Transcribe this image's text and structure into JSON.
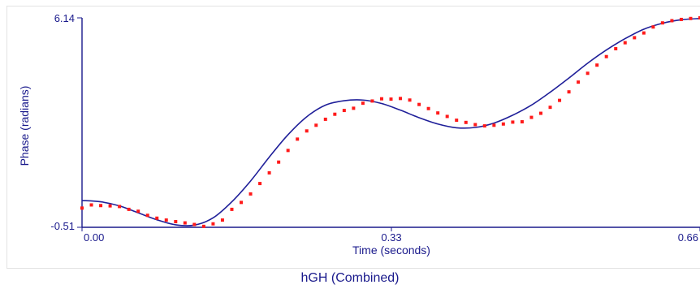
{
  "chart_data": {
    "type": "line",
    "title": "hGH (Combined)",
    "xlabel": "Time (seconds)",
    "ylabel": "Phase (radians)",
    "xlim": [
      0.0,
      0.66
    ],
    "ylim": [
      -0.51,
      6.14
    ],
    "x_ticks": [
      "0.00",
      "0.33",
      "0.66"
    ],
    "y_ticks": [
      "-0.51",
      "6.14"
    ],
    "grid": false,
    "colors": {
      "axis": "#1a1a8c",
      "fit_line": "#1f1f99",
      "data_points": "#ff1a1a"
    },
    "series": [
      {
        "role": "fit",
        "style": "line",
        "x": [
          0.0,
          0.02,
          0.04,
          0.06,
          0.08,
          0.1,
          0.12,
          0.14,
          0.16,
          0.18,
          0.2,
          0.22,
          0.24,
          0.26,
          0.28,
          0.3,
          0.32,
          0.34,
          0.36,
          0.38,
          0.4,
          0.42,
          0.44,
          0.46,
          0.48,
          0.5,
          0.52,
          0.54,
          0.56,
          0.58,
          0.6,
          0.62,
          0.64,
          0.66
        ],
        "y": [
          0.34,
          0.3,
          0.17,
          -0.05,
          -0.27,
          -0.43,
          -0.44,
          -0.21,
          0.3,
          0.96,
          1.72,
          2.43,
          3.0,
          3.37,
          3.51,
          3.53,
          3.42,
          3.21,
          2.97,
          2.77,
          2.65,
          2.66,
          2.8,
          3.05,
          3.37,
          3.78,
          4.23,
          4.7,
          5.12,
          5.48,
          5.78,
          5.97,
          6.08,
          6.12
        ]
      },
      {
        "role": "measured",
        "style": "scatter",
        "x": [
          0.0,
          0.01,
          0.02,
          0.03,
          0.04,
          0.05,
          0.06,
          0.07,
          0.08,
          0.09,
          0.1,
          0.11,
          0.12,
          0.13,
          0.14,
          0.15,
          0.16,
          0.17,
          0.18,
          0.19,
          0.2,
          0.21,
          0.22,
          0.23,
          0.24,
          0.25,
          0.26,
          0.27,
          0.28,
          0.29,
          0.3,
          0.31,
          0.32,
          0.33,
          0.34,
          0.35,
          0.36,
          0.37,
          0.38,
          0.39,
          0.4,
          0.41,
          0.42,
          0.43,
          0.44,
          0.45,
          0.46,
          0.47,
          0.48,
          0.49,
          0.5,
          0.51,
          0.52,
          0.53,
          0.54,
          0.55,
          0.56,
          0.57,
          0.58,
          0.59,
          0.6,
          0.61,
          0.62,
          0.63,
          0.64,
          0.65,
          0.66
        ],
        "y": [
          0.1,
          0.2,
          0.18,
          0.17,
          0.15,
          0.06,
          0.0,
          -0.13,
          -0.22,
          -0.28,
          -0.33,
          -0.37,
          -0.42,
          -0.48,
          -0.4,
          -0.28,
          0.06,
          0.28,
          0.55,
          0.88,
          1.22,
          1.56,
          1.93,
          2.29,
          2.55,
          2.73,
          2.92,
          3.08,
          3.2,
          3.27,
          3.43,
          3.5,
          3.57,
          3.56,
          3.58,
          3.53,
          3.39,
          3.26,
          3.12,
          3.01,
          2.89,
          2.82,
          2.75,
          2.71,
          2.73,
          2.77,
          2.83,
          2.84,
          2.98,
          3.11,
          3.3,
          3.52,
          3.79,
          4.1,
          4.38,
          4.64,
          4.91,
          5.16,
          5.35,
          5.51,
          5.66,
          5.85,
          5.98,
          6.05,
          6.09,
          6.12,
          6.14
        ]
      }
    ]
  }
}
